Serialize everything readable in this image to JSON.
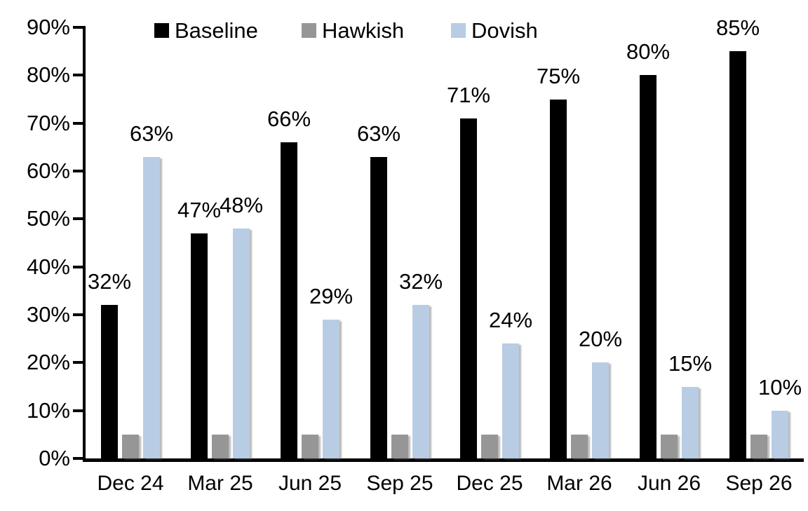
{
  "chart_data": {
    "type": "bar",
    "title": "",
    "categories": [
      "Dec 24",
      "Mar 25",
      "Jun 25",
      "Sep 25",
      "Dec 25",
      "Mar 26",
      "Jun 26",
      "Sep 26"
    ],
    "series": [
      {
        "name": "Baseline",
        "color": "#000000",
        "values": [
          32,
          47,
          66,
          63,
          71,
          75,
          80,
          85
        ],
        "data_labels": [
          "32%",
          "47%",
          "66%",
          "63%",
          "71%",
          "75%",
          "80%",
          "85%"
        ],
        "labels_shown": true
      },
      {
        "name": "Hawkish",
        "color": "#969696",
        "values": [
          5,
          5,
          5,
          5,
          5,
          5,
          5,
          5
        ],
        "data_labels": [],
        "labels_shown": false
      },
      {
        "name": "Dovish",
        "color": "#B8CCE4",
        "values": [
          63,
          48,
          29,
          32,
          24,
          20,
          15,
          10
        ],
        "data_labels": [
          "63%",
          "48%",
          "29%",
          "32%",
          "24%",
          "20%",
          "15%",
          "10%"
        ],
        "labels_shown": true
      }
    ],
    "y_axis": {
      "min": 0,
      "max": 90,
      "tick_step": 10,
      "tick_labels": [
        "0%",
        "10%",
        "20%",
        "30%",
        "40%",
        "50%",
        "60%",
        "70%",
        "80%",
        "90%"
      ]
    },
    "legend_position": "top",
    "gridlines": false,
    "xlabel": "",
    "ylabel": ""
  },
  "legend_layout": {
    "item_lefts": [
      220,
      430,
      643
    ]
  }
}
